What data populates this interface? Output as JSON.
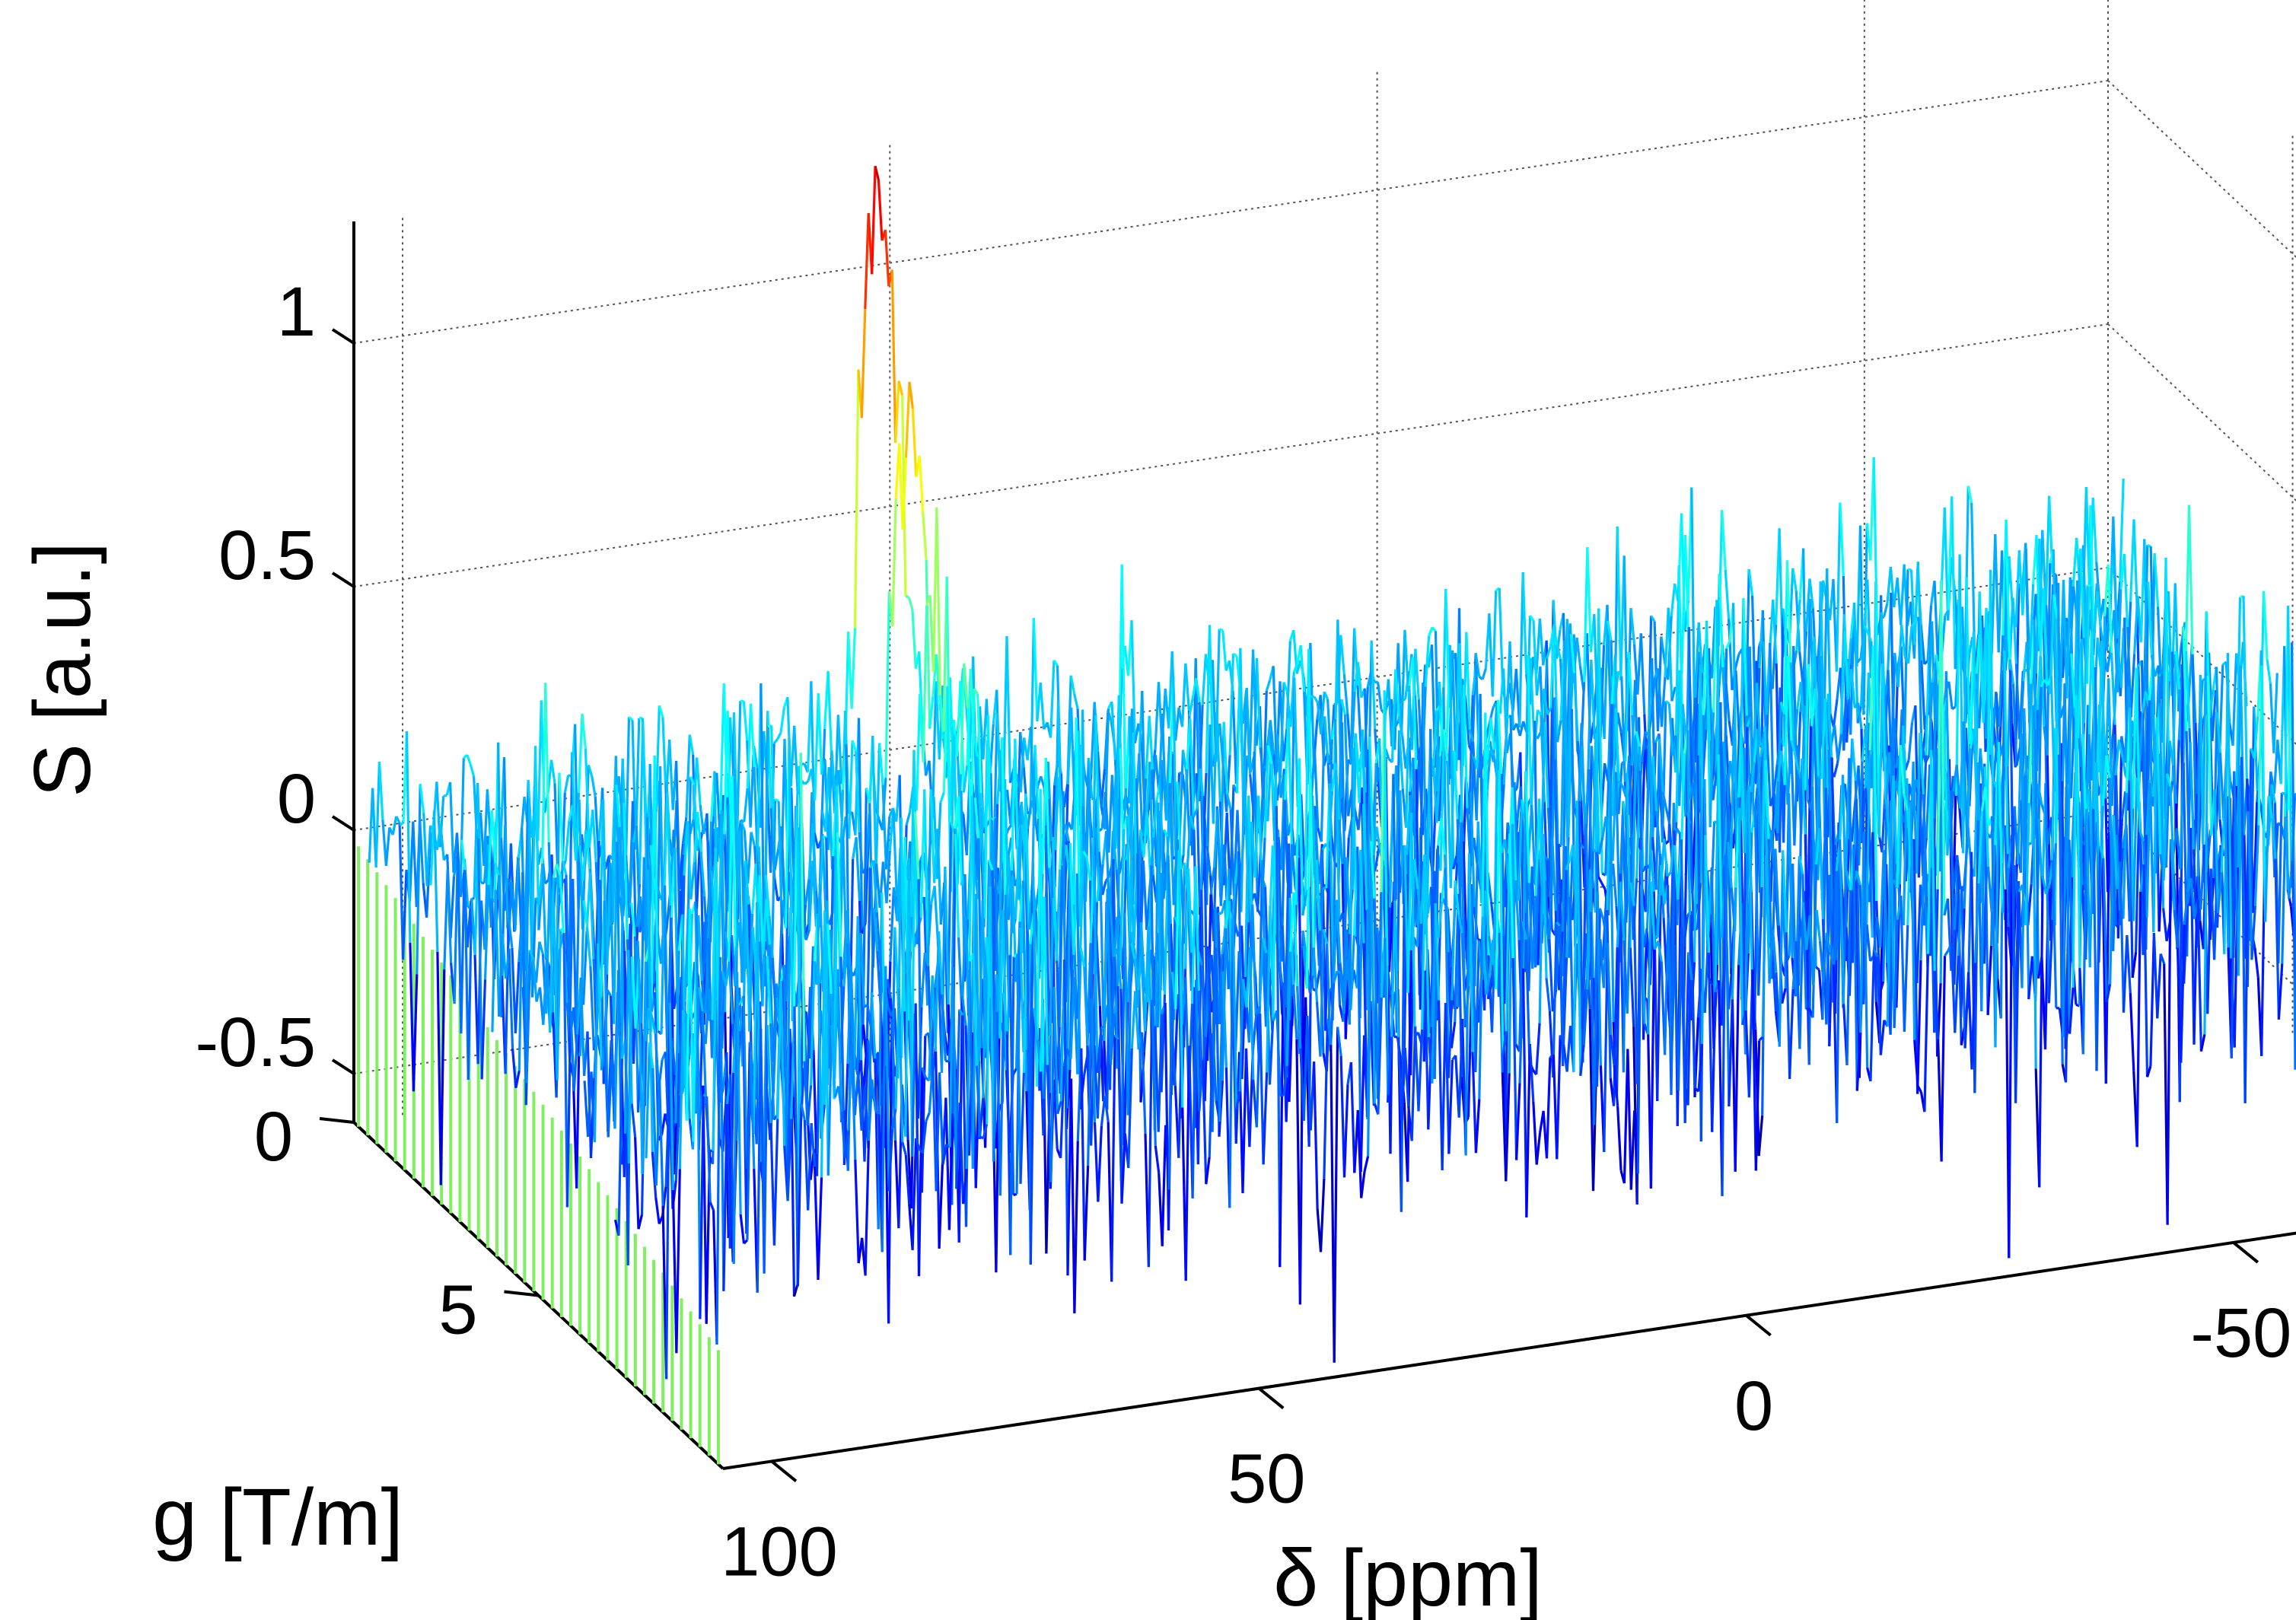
{
  "chart_data": {
    "type": "surface",
    "title": "",
    "x": {
      "label": "δ [ppm]",
      "ticks": [
        100,
        50,
        0,
        -50
      ],
      "tick_labels": [
        "100",
        "50",
        "0",
        "-50"
      ],
      "range": [
        -75,
        105
      ],
      "reversed": true
    },
    "y": {
      "label": "g [T/m]",
      "ticks": [
        0,
        5
      ],
      "tick_labels": [
        "0",
        "5"
      ],
      "range": [
        0,
        10
      ]
    },
    "z": {
      "label": "S [a.u.]",
      "ticks": [
        -0.5,
        0,
        0.5,
        1
      ],
      "tick_labels": [
        "-0.5",
        "0",
        "0.5",
        "1"
      ],
      "range": [
        -0.6,
        1.25
      ]
    },
    "grid": true,
    "colormap": "jet",
    "peak": {
      "delta_ppm": 53,
      "max_signal": 1.38,
      "linewidth_ppm": 2
    },
    "noise_level": 0.12,
    "num_traces": 10,
    "baseline_color": "#80f060"
  }
}
